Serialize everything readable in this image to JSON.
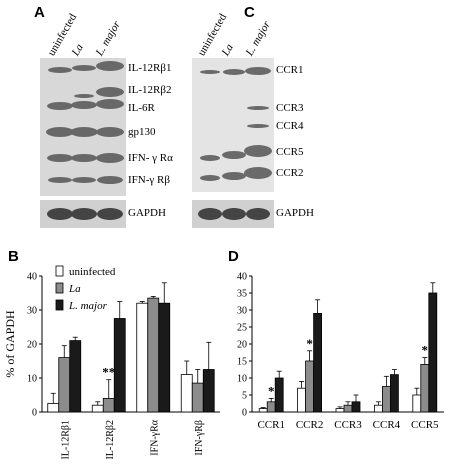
{
  "panels": {
    "A": {
      "label": "A",
      "lanes": [
        "uninfected",
        "La",
        "L. major"
      ],
      "bands": [
        "IL-12Rβ1",
        "IL-12Rβ2",
        "IL-6R",
        "gp130",
        "IFN- γ Rα",
        "IFN-γ Rβ"
      ],
      "control": "GAPDH"
    },
    "C": {
      "label": "C",
      "lanes": [
        "uninfected",
        "La",
        "L. major"
      ],
      "bands": [
        "CCR1",
        "CCR3",
        "CCR4",
        "CCR5",
        "CCR2"
      ],
      "control": "GAPDH"
    }
  },
  "chart_data": [
    {
      "panel_label": "B",
      "type": "bar",
      "ylabel": "% of GAPDH",
      "ylim": [
        0,
        40
      ],
      "yticks": [
        0,
        10,
        20,
        30,
        40
      ],
      "categories": [
        "IL-12Rβ1",
        "IL-12Rβ2",
        "IFN-γRα",
        "IFN-γRβ"
      ],
      "legend": [
        "uninfected",
        "La",
        "L. major"
      ],
      "colors": [
        "#ffffff",
        "#8c8c8c",
        "#1a1a1a"
      ],
      "series": [
        {
          "name": "uninfected",
          "values": [
            2.5,
            2,
            32,
            11
          ],
          "errors": [
            3,
            1,
            0.5,
            4
          ]
        },
        {
          "name": "La",
          "values": [
            16,
            4,
            33.5,
            8.5
          ],
          "errors": [
            3.5,
            5.5,
            0.5,
            4
          ]
        },
        {
          "name": "L. major",
          "values": [
            21,
            27.5,
            32,
            12.5
          ],
          "errors": [
            1,
            5,
            6,
            8
          ]
        }
      ],
      "annotations": [
        {
          "category": "IL-12Rβ2",
          "text": "**"
        }
      ]
    },
    {
      "panel_label": "D",
      "type": "bar",
      "ylim": [
        0,
        40
      ],
      "yticks": [
        0,
        5,
        10,
        15,
        20,
        25,
        30,
        35,
        40
      ],
      "categories": [
        "CCR1",
        "CCR2",
        "CCR3",
        "CCR4",
        "CCR5"
      ],
      "colors": [
        "#ffffff",
        "#8c8c8c",
        "#1a1a1a"
      ],
      "series": [
        {
          "name": "uninfected",
          "values": [
            1,
            7,
            1,
            2,
            5
          ],
          "errors": [
            0.3,
            2,
            0.5,
            1,
            2
          ]
        },
        {
          "name": "La",
          "values": [
            3,
            15,
            2,
            7.5,
            14
          ],
          "errors": [
            1,
            3,
            1,
            3,
            2
          ]
        },
        {
          "name": "L. major",
          "values": [
            10,
            29,
            3,
            11,
            35
          ],
          "errors": [
            2,
            4,
            2,
            1.5,
            3
          ]
        }
      ],
      "annotations": [
        {
          "category": "CCR1",
          "text": "*"
        },
        {
          "category": "CCR2",
          "text": "*"
        },
        {
          "category": "CCR5",
          "text": "*"
        }
      ]
    }
  ]
}
